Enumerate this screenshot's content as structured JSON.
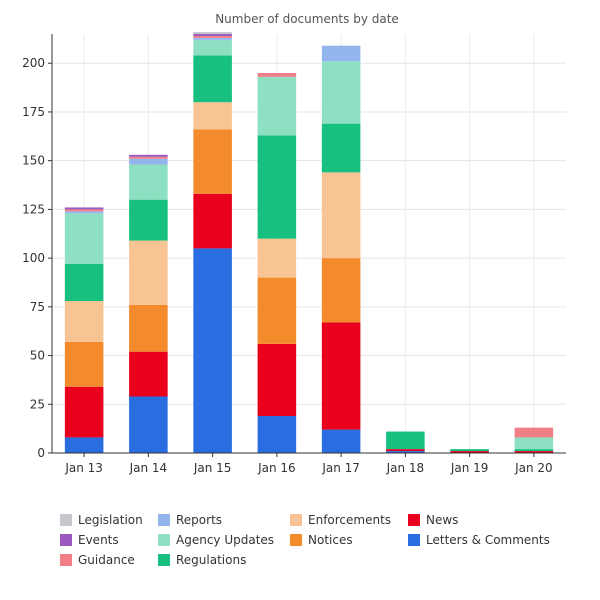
{
  "chart_data": {
    "type": "bar",
    "stacked": true,
    "title": "Number of documents by date",
    "xlabel": "",
    "ylabel": "",
    "categories": [
      "Jan 13",
      "Jan 14",
      "Jan 15",
      "Jan 16",
      "Jan 17",
      "Jan 18",
      "Jan 19",
      "Jan 20"
    ],
    "ylim": [
      0,
      215
    ],
    "yticks": [
      0,
      25,
      50,
      75,
      100,
      125,
      150,
      175,
      200
    ],
    "grid": true,
    "legend_position": "bottom",
    "series": [
      {
        "name": "Letters & Comments",
        "color": "#2a6de0",
        "values": [
          8,
          29,
          105,
          19,
          12,
          1,
          0,
          0
        ]
      },
      {
        "name": "News",
        "color": "#e8001c",
        "values": [
          26,
          23,
          28,
          37,
          55,
          1,
          1,
          1
        ]
      },
      {
        "name": "Notices",
        "color": "#f38b2c",
        "values": [
          23,
          24,
          33,
          34,
          33,
          0,
          0,
          0
        ]
      },
      {
        "name": "Enforcements",
        "color": "#f8c494",
        "values": [
          21,
          33,
          14,
          20,
          44,
          0,
          0,
          0
        ]
      },
      {
        "name": "Regulations",
        "color": "#18c07f",
        "values": [
          19,
          21,
          24,
          53,
          25,
          9,
          1,
          1
        ]
      },
      {
        "name": "Agency Updates",
        "color": "#8de0c2",
        "values": [
          26,
          18,
          8,
          30,
          32,
          0,
          0,
          6
        ]
      },
      {
        "name": "Reports",
        "color": "#93b5ee",
        "values": [
          1,
          3,
          1,
          0,
          8,
          0,
          0,
          0
        ]
      },
      {
        "name": "Guidance",
        "color": "#f07e87",
        "values": [
          1,
          1,
          1,
          2,
          0,
          0,
          0,
          5
        ]
      },
      {
        "name": "Events",
        "color": "#9b59c0",
        "values": [
          1,
          1,
          1,
          0,
          0,
          0,
          0,
          0
        ]
      },
      {
        "name": "Legislation",
        "color": "#c6c6cc",
        "values": [
          0,
          0,
          1,
          0,
          0,
          0,
          0,
          0
        ]
      }
    ],
    "legend_order": [
      "Legislation",
      "Reports",
      "Enforcements",
      "News",
      "Events",
      "Agency Updates",
      "Notices",
      "Letters & Comments",
      "Guidance",
      "Regulations"
    ]
  }
}
